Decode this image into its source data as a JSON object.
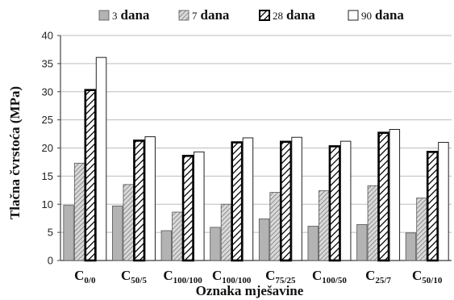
{
  "chart_data": {
    "type": "bar",
    "title": "",
    "xlabel": "Oznaka mješavine",
    "ylabel": "Tlačna čvrstoća (MPa)",
    "ylim": [
      0,
      40
    ],
    "yticks": [
      0,
      5,
      10,
      15,
      20,
      25,
      30,
      35,
      40
    ],
    "grid": true,
    "legend_position": "top",
    "categories": [
      {
        "main": "C",
        "sub": "0/0"
      },
      {
        "main": "C",
        "sub": "50/5"
      },
      {
        "main": "C",
        "sub": "100/100"
      },
      {
        "main": "C",
        "sub": "100/100"
      },
      {
        "main": "C",
        "sub": "75/25"
      },
      {
        "main": "C",
        "sub": "100/50"
      },
      {
        "main": "C",
        "sub": "25/7"
      },
      {
        "main": "C",
        "sub": "50/10"
      }
    ],
    "series": [
      {
        "num": "3",
        "unit": "dana",
        "style": "solid-gray",
        "color": "#b0b0b0",
        "values": [
          9.8,
          9.7,
          5.3,
          5.9,
          7.4,
          6.1,
          6.4,
          4.9
        ]
      },
      {
        "num": "7",
        "unit": "dana",
        "style": "hatched",
        "color": "#c8c8c8",
        "values": [
          17.3,
          13.5,
          8.6,
          10.0,
          12.1,
          12.4,
          13.3,
          11.1
        ]
      },
      {
        "num": "28",
        "unit": "dana",
        "style": "zigzag-black-border",
        "color": "#000000",
        "values": [
          30.3,
          21.3,
          18.6,
          21.0,
          21.1,
          20.3,
          22.7,
          19.3
        ]
      },
      {
        "num": "90",
        "unit": "dana",
        "style": "white",
        "color": "#ffffff",
        "values": [
          36.1,
          22.0,
          19.3,
          21.8,
          21.9,
          21.2,
          23.3,
          21.0
        ]
      }
    ]
  }
}
